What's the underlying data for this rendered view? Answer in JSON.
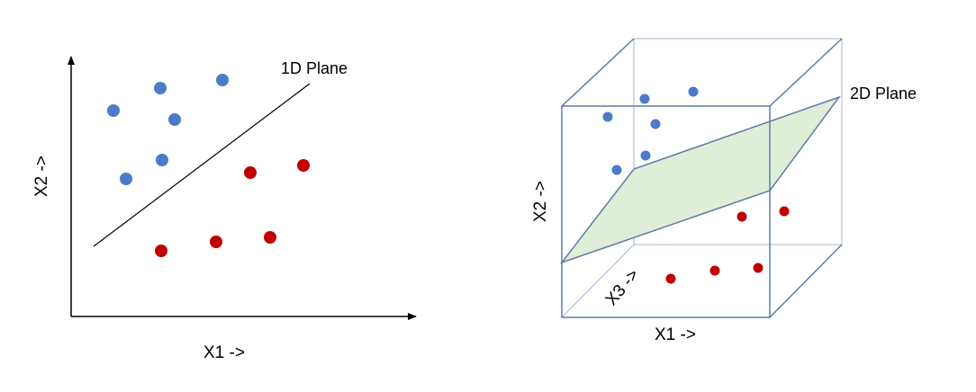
{
  "left_diagram": {
    "plane_label": "1D Plane",
    "x_axis_label": "X1 ->",
    "y_axis_label": "X2 ->"
  },
  "right_diagram": {
    "plane_label": "2D Plane",
    "x_axis_label": "X1 ->",
    "y_axis_label": "X2 ->",
    "z_axis_label": "X3 ->"
  },
  "colors": {
    "class_a": "#4a7cc9",
    "class_b": "#c00000",
    "plane_fill": "#dfeed6",
    "cube_edge": "#5f7aa8"
  }
}
